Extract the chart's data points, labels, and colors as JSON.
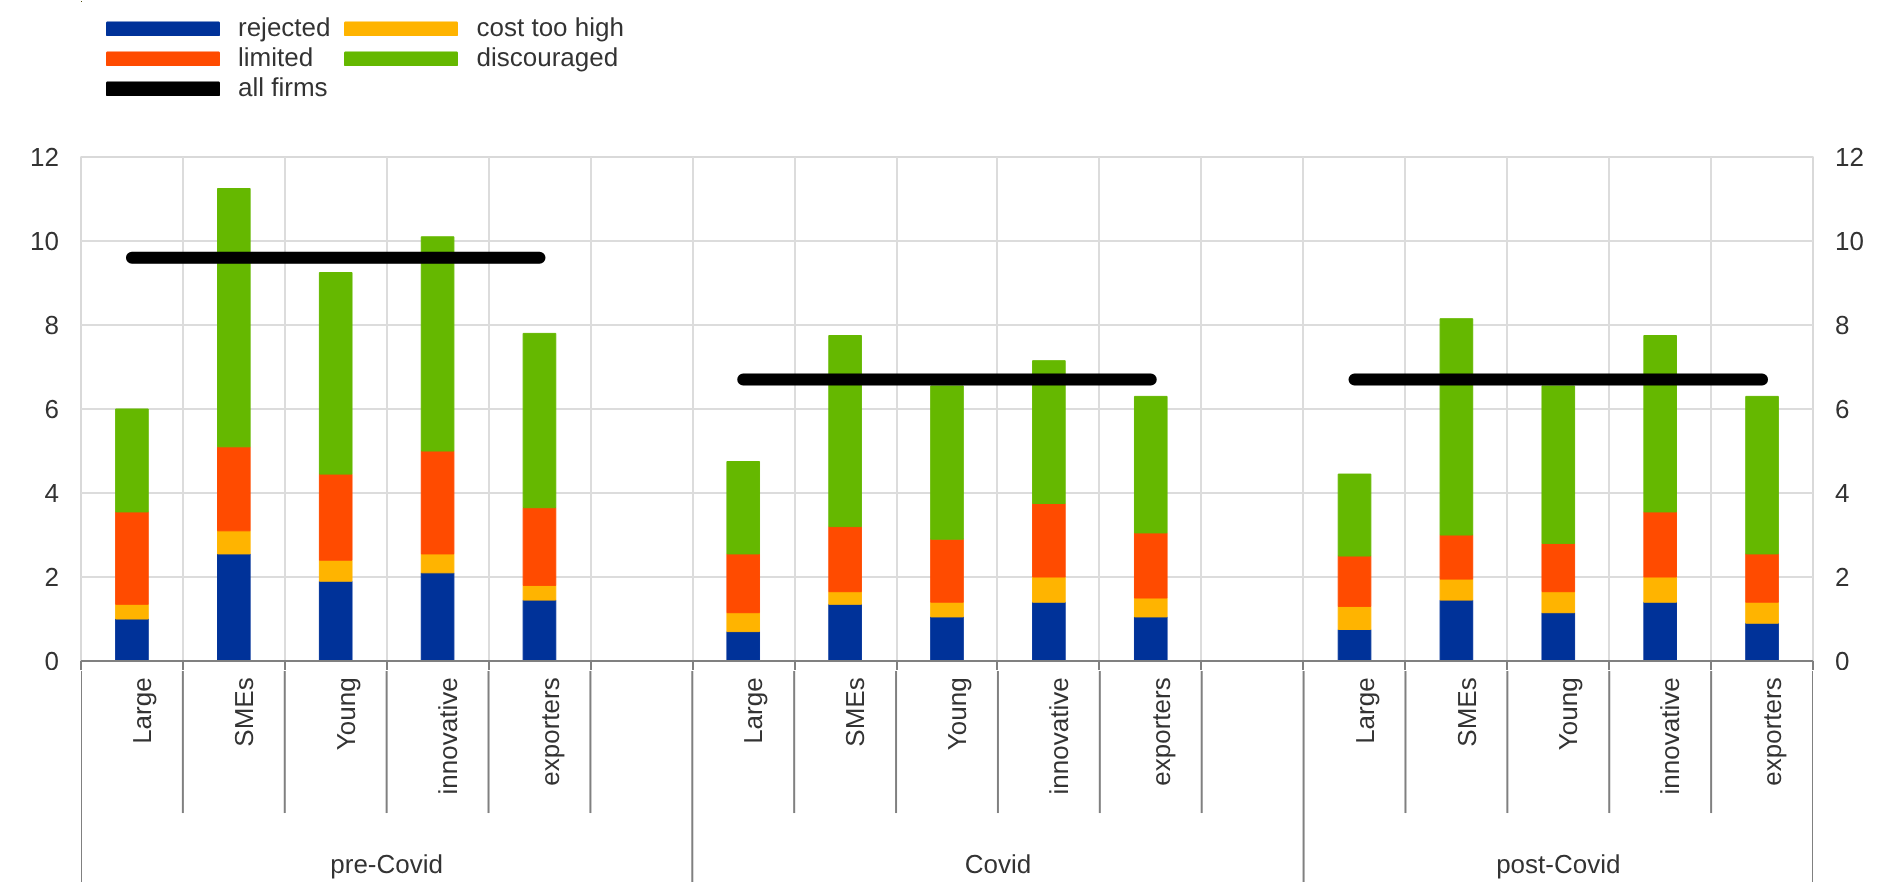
{
  "chart_data": {
    "type": "bar",
    "stacked": true,
    "categories": [
      "Large",
      "SMEs",
      "Young",
      "innovative",
      "exporters",
      null,
      "Large",
      "SMEs",
      "Young",
      "innovative",
      "exporters",
      null,
      "Large",
      "SMEs",
      "Young",
      "innovative",
      "exporters"
    ],
    "series": [
      {
        "name": "rejected",
        "color": "#003299",
        "values": [
          1.0,
          2.55,
          1.9,
          2.1,
          1.45,
          null,
          0.7,
          1.35,
          1.05,
          1.4,
          1.05,
          null,
          0.75,
          1.45,
          1.15,
          1.4,
          0.9
        ]
      },
      {
        "name": "cost too high",
        "color": "#ffb400",
        "values": [
          0.35,
          0.55,
          0.5,
          0.45,
          0.35,
          null,
          0.45,
          0.3,
          0.35,
          0.6,
          0.45,
          null,
          0.55,
          0.5,
          0.5,
          0.6,
          0.5
        ]
      },
      {
        "name": "limited",
        "color": "#ff4b00",
        "values": [
          2.2,
          2.0,
          2.05,
          2.45,
          1.85,
          null,
          1.4,
          1.55,
          1.5,
          1.75,
          1.55,
          null,
          1.2,
          1.05,
          1.15,
          1.55,
          1.15
        ]
      },
      {
        "name": "discouraged",
        "color": "#65b800",
        "values": [
          2.45,
          6.15,
          4.8,
          5.1,
          4.15,
          null,
          2.2,
          4.55,
          3.65,
          3.4,
          3.25,
          null,
          1.95,
          5.15,
          3.75,
          4.2,
          3.75
        ]
      },
      {
        "name": "all firms",
        "type": "line",
        "color": "#000000",
        "values": [
          9.6,
          9.6,
          9.6,
          9.6,
          9.6,
          null,
          6.7,
          6.7,
          6.7,
          6.7,
          6.7,
          null,
          6.7,
          6.7,
          6.7,
          6.7,
          6.7
        ]
      }
    ],
    "annotations": [
      "pre-Covid",
      "Covid",
      "post-Covid"
    ],
    "ylim": [
      0,
      12
    ],
    "yticks": [
      0,
      2,
      4,
      6,
      8,
      10,
      12
    ],
    "y2lim": [
      0,
      12
    ],
    "y2ticks": [
      0,
      2,
      4,
      6,
      8,
      10,
      12
    ],
    "grid": true,
    "legend": "top left"
  }
}
